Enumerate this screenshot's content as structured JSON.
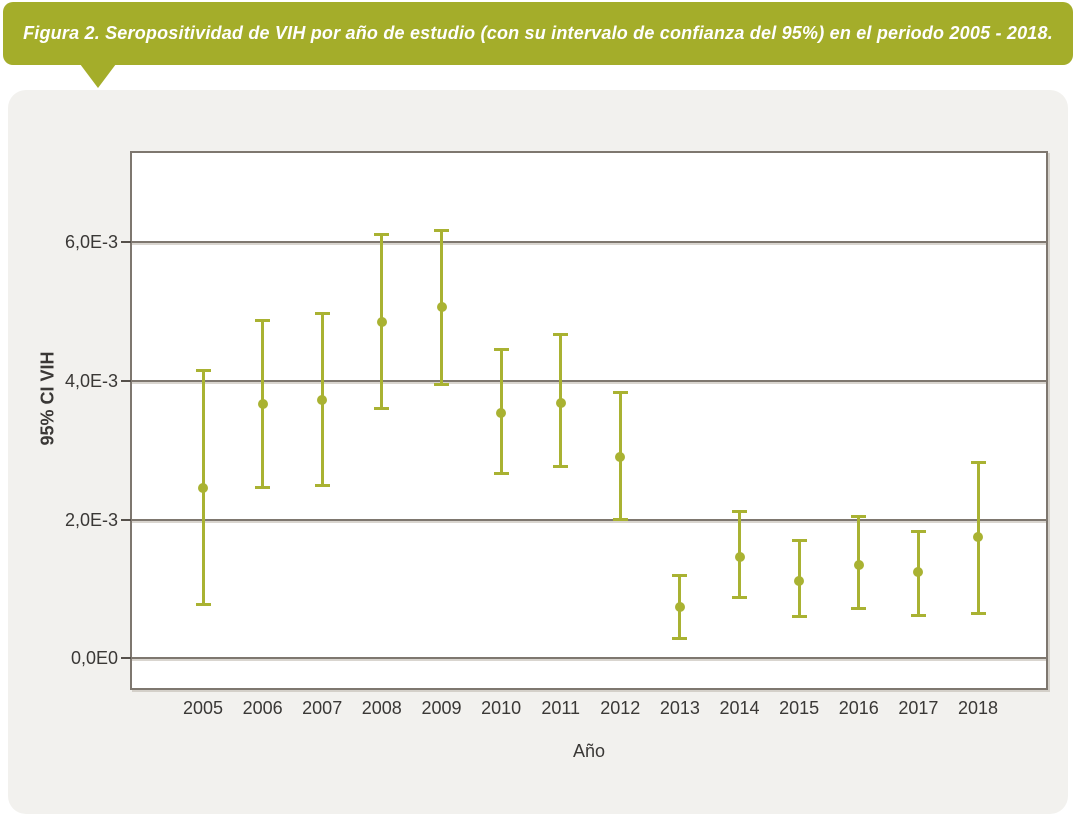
{
  "figure": {
    "title": "Figura 2. Seropositividad de VIH por año de estudio (con su intervalo de confianza del 95%) en el periodo 2005 - 2018."
  },
  "colors": {
    "banner_bg": "#a4ad2a",
    "panel_bg": "#f2f1ee",
    "plot_bg": "#ffffff",
    "marker": "#a9b232",
    "grid": "#7e776f",
    "tick_text": "#3a3836",
    "title_text": "#ffffff"
  },
  "chart_data": {
    "type": "scatter",
    "subtype": "point-with-error-bars",
    "title": "",
    "xlabel": "Año",
    "ylabel": "95% CI VIH",
    "grid": true,
    "legend": false,
    "categories": [
      "2005",
      "2006",
      "2007",
      "2008",
      "2009",
      "2010",
      "2011",
      "2012",
      "2013",
      "2014",
      "2015",
      "2016",
      "2017",
      "2018"
    ],
    "series": [
      {
        "name": "Seropositividad de VIH",
        "values": [
          0.00245,
          0.00367,
          0.00372,
          0.00485,
          0.00507,
          0.00354,
          0.00368,
          0.0029,
          0.00074,
          0.00146,
          0.00112,
          0.00135,
          0.00124,
          0.00175
        ],
        "ci_low": [
          0.00078,
          0.00247,
          0.00249,
          0.0036,
          0.00395,
          0.00266,
          0.00276,
          0.002,
          0.00029,
          0.00088,
          0.0006,
          0.00072,
          0.00062,
          0.00065
        ],
        "ci_high": [
          0.00415,
          0.00488,
          0.00497,
          0.00612,
          0.00618,
          0.00446,
          0.00467,
          0.00384,
          0.00119,
          0.00212,
          0.0017,
          0.00205,
          0.00183,
          0.00283
        ]
      }
    ],
    "yticks": [
      {
        "value": 0,
        "label": "0,0E0"
      },
      {
        "value": 0.002,
        "label": "2,0E-3"
      },
      {
        "value": 0.004,
        "label": "4,0E-3"
      },
      {
        "value": 0.006,
        "label": "6,0E-3"
      }
    ],
    "ylim": [
      -0.00046,
      0.00732
    ]
  }
}
